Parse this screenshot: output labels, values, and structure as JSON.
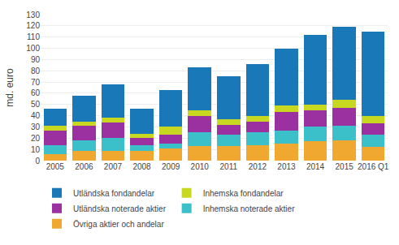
{
  "chart_data": {
    "type": "bar",
    "stacked": true,
    "categories": [
      "2005",
      "2006",
      "2007",
      "2008",
      "2009",
      "2010",
      "2011",
      "2012",
      "2013",
      "2014",
      "2015",
      "2016 Q1"
    ],
    "series": [
      {
        "name": "Övriga aktier och andelar",
        "color": "#f0a830",
        "values": [
          6,
          9,
          9,
          9,
          11,
          13,
          13,
          14,
          15,
          17,
          18,
          12
        ]
      },
      {
        "name": "Inhemska noterade aktier",
        "color": "#3bbfc8",
        "values": [
          8,
          9,
          11,
          5,
          4,
          12,
          10,
          11,
          12,
          13,
          13,
          11
        ]
      },
      {
        "name": "Utländska noterade aktier",
        "color": "#9b30a0",
        "values": [
          13,
          13,
          14,
          6,
          8,
          15,
          9,
          10,
          16,
          15,
          16,
          10
        ]
      },
      {
        "name": "Inhemska fondandelar",
        "color": "#c8d820",
        "values": [
          4,
          4,
          4,
          4,
          7,
          5,
          5,
          5,
          6,
          5,
          7,
          7
        ]
      },
      {
        "name": "Utländska fondandelar",
        "color": "#1878b8",
        "values": [
          15,
          23,
          30,
          22,
          33,
          38,
          38,
          46,
          51,
          62,
          65,
          75
        ]
      }
    ],
    "ylabel": "md. euro",
    "ylim": [
      0,
      130
    ],
    "yticks": [
      0,
      10,
      20,
      30,
      40,
      50,
      60,
      70,
      80,
      90,
      100,
      110,
      120,
      130
    ],
    "grid": true,
    "legend": "bottom"
  }
}
